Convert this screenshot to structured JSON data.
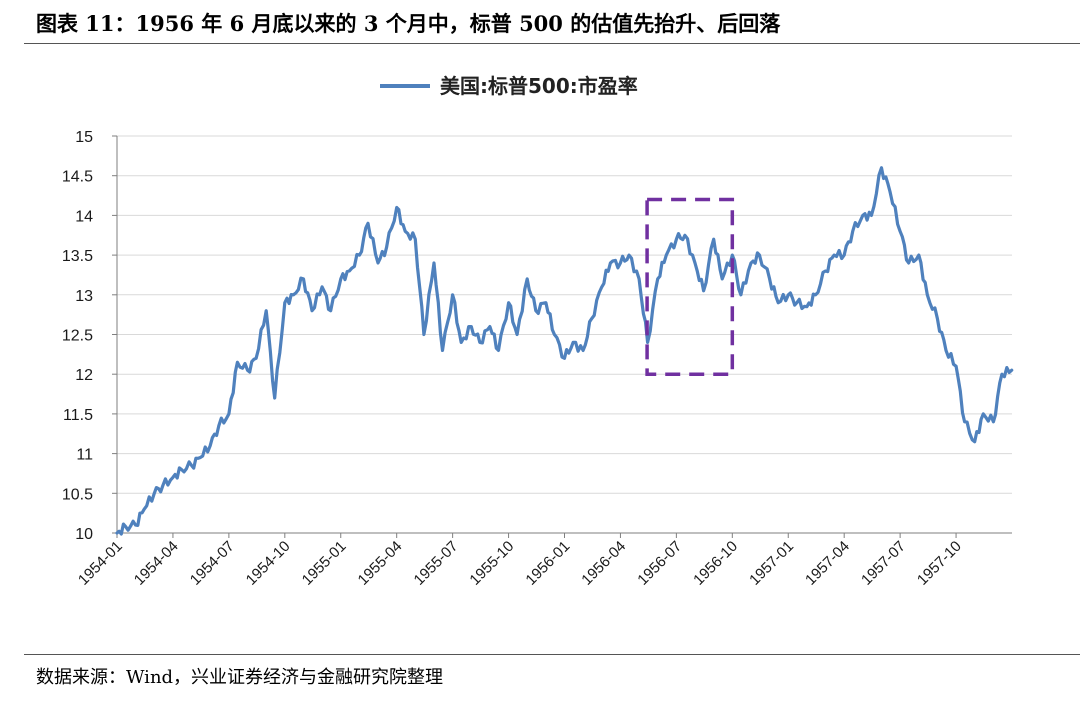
{
  "figure": {
    "title": "图表 11：1956 年 6 月底以来的 3 个月中，标普 500 的估值先抬升、后回落",
    "source": "数据来源：Wind，兴业证券经济与金融研究院整理"
  },
  "colors": {
    "line": "#4f81bd",
    "highlight_box": "#7030a0",
    "grid": "#d9d9d9",
    "axis": "#7f7f7f"
  },
  "chart_data": {
    "type": "line",
    "title": "",
    "xlabel": "",
    "ylabel": "",
    "legend_position": "top-center",
    "grid": "horizontal",
    "ylim": [
      10,
      15
    ],
    "y_ticks": [
      "10",
      "10.5",
      "11",
      "11.5",
      "12",
      "12.5",
      "13",
      "13.5",
      "14",
      "14.5",
      "15"
    ],
    "x_ticks": [
      "1954-01",
      "1954-04",
      "1954-07",
      "1954-10",
      "1955-01",
      "1955-04",
      "1955-07",
      "1955-10",
      "1956-01",
      "1956-04",
      "1956-07",
      "1956-10",
      "1957-01",
      "1957-04",
      "1957-07",
      "1957-10"
    ],
    "highlight": {
      "x_start": "1956-05",
      "x_end": "1956-10",
      "y_range": [
        12.0,
        14.2
      ],
      "style": "dashed"
    },
    "series": [
      {
        "name": "美国:标普500:市盈率",
        "x": [
          "1954-01-01",
          "1954-01-15",
          "1954-02-01",
          "1954-02-15",
          "1954-03-01",
          "1954-03-15",
          "1954-04-01",
          "1954-04-15",
          "1954-05-01",
          "1954-05-15",
          "1954-06-01",
          "1954-06-15",
          "1954-07-01",
          "1954-07-15",
          "1954-08-01",
          "1954-08-15",
          "1954-09-01",
          "1954-09-15",
          "1954-10-01",
          "1954-10-15",
          "1954-11-01",
          "1954-11-15",
          "1954-12-01",
          "1954-12-15",
          "1955-01-01",
          "1955-01-15",
          "1955-02-01",
          "1955-02-15",
          "1955-03-01",
          "1955-03-15",
          "1955-04-01",
          "1955-04-15",
          "1955-05-01",
          "1955-05-15",
          "1955-06-01",
          "1955-06-15",
          "1955-07-01",
          "1955-07-15",
          "1955-08-01",
          "1955-08-15",
          "1955-09-01",
          "1955-09-15",
          "1955-10-01",
          "1955-10-15",
          "1955-11-01",
          "1955-11-15",
          "1955-12-01",
          "1955-12-15",
          "1956-01-01",
          "1956-01-15",
          "1956-02-01",
          "1956-02-15",
          "1956-03-01",
          "1956-03-15",
          "1956-04-01",
          "1956-04-15",
          "1956-05-01",
          "1956-05-15",
          "1956-06-01",
          "1956-06-15",
          "1956-07-01",
          "1956-07-15",
          "1956-08-01",
          "1956-08-15",
          "1956-09-01",
          "1956-09-15",
          "1956-10-01",
          "1956-10-15",
          "1956-11-01",
          "1956-11-15",
          "1956-12-01",
          "1956-12-15",
          "1957-01-01",
          "1957-01-15",
          "1957-02-01",
          "1957-02-15",
          "1957-03-01",
          "1957-03-15",
          "1957-04-01",
          "1957-04-15",
          "1957-05-01",
          "1957-05-15",
          "1957-06-01",
          "1957-06-15",
          "1957-07-01",
          "1957-07-15",
          "1957-08-01",
          "1957-08-15",
          "1957-09-01",
          "1957-09-15",
          "1957-10-01",
          "1957-10-15",
          "1957-11-01",
          "1957-11-15",
          "1957-12-01",
          "1957-12-15",
          "1957-12-31"
        ],
        "values": [
          10.0,
          10.08,
          10.1,
          10.3,
          10.5,
          10.6,
          10.7,
          10.8,
          10.85,
          10.95,
          11.1,
          11.35,
          11.5,
          12.15,
          12.05,
          12.2,
          12.8,
          11.7,
          12.9,
          13.0,
          13.2,
          12.8,
          13.1,
          12.8,
          13.2,
          13.3,
          13.5,
          13.9,
          13.4,
          13.6,
          14.1,
          13.8,
          13.7,
          12.5,
          13.4,
          12.3,
          13.0,
          12.4,
          12.6,
          12.4,
          12.6,
          12.3,
          12.9,
          12.5,
          13.2,
          12.8,
          12.9,
          12.5,
          12.2,
          12.4,
          12.3,
          12.7,
          13.1,
          13.4,
          13.4,
          13.5,
          13.2,
          12.4,
          13.2,
          13.5,
          13.7,
          13.75,
          13.4,
          13.05,
          13.7,
          13.2,
          13.5,
          13.0,
          13.4,
          13.5,
          13.2,
          12.9,
          13.0,
          12.9,
          12.85,
          13.0,
          13.3,
          13.5,
          13.5,
          13.8,
          14.0,
          14.0,
          14.6,
          14.3,
          13.8,
          13.4,
          13.5,
          13.0,
          12.7,
          12.3,
          12.1,
          11.4,
          11.15,
          11.5,
          11.4,
          12.0,
          12.05
        ]
      }
    ]
  }
}
